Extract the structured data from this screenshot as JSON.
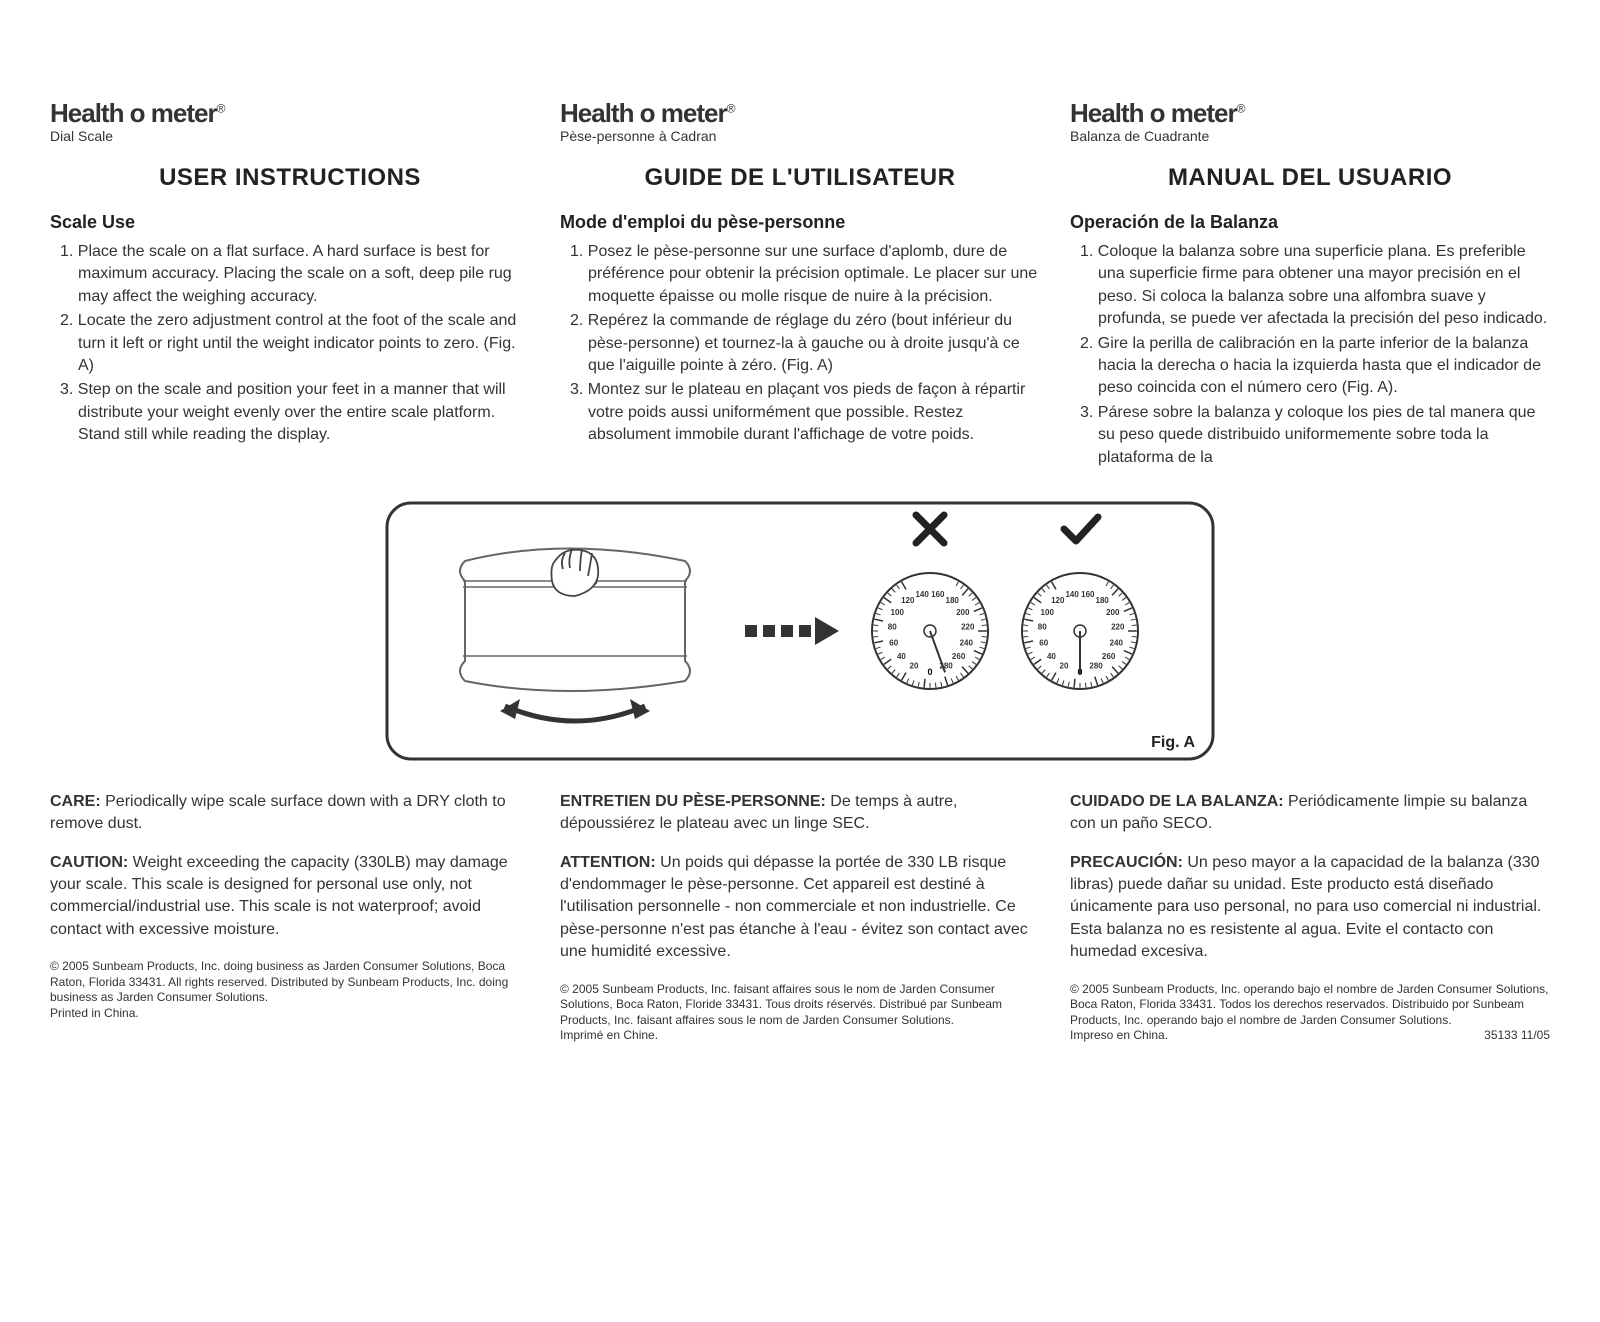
{
  "brand": "Health o meter",
  "reg": "®",
  "columns": [
    {
      "subtitle": "Dial Scale",
      "heading": "USER INSTRUCTIONS",
      "section": "Scale Use",
      "items": [
        "1. Place the scale on a flat surface.  A hard surface is best for maximum accuracy. Placing the scale on a soft, deep pile rug may affect the weighing accuracy.",
        "2. Locate the zero adjustment control at the foot of the scale and turn it left or right until the weight indicator points to zero. (Fig. A)",
        "3. Step on the scale and position your feet in a manner that will distribute your weight evenly over the entire scale platform. Stand still while reading the display."
      ]
    },
    {
      "subtitle": "Pèse-personne à Cadran",
      "heading": "GUIDE DE L'UTILISATEUR",
      "section": "Mode d'emploi du pèse-personne",
      "items": [
        "1. Posez le pèse-personne sur une surface d'aplomb, dure de préférence pour obtenir la précision optimale. Le placer sur une moquette épaisse ou molle risque de nuire à la précision.",
        "2. Repérez la commande de réglage du zéro (bout inférieur du pèse-personne) et tournez-la à gauche ou à droite jusqu'à ce que l'aiguille pointe à zéro. (Fig. A)",
        "3. Montez sur le plateau en plaçant vos pieds de façon à répartir votre poids aussi uniformément que possible. Restez absolument immobile durant l'affichage de votre poids."
      ]
    },
    {
      "subtitle": "Balanza de Cuadrante",
      "heading": "MANUAL DEL USUARIO",
      "section": "Operación de la Balanza",
      "items": [
        "1. Coloque la balanza sobre una superficie plana. Es preferible una superficie firme para obtener una mayor precisión en el peso. Si coloca la balanza sobre una alfombra suave y profunda, se puede ver afectada la precisión del peso indicado.",
        "2. Gire la perilla de calibración en la parte inferior de la balanza hacia la derecha o hacia la izquierda hasta que el indicador de peso coincida con el número cero (Fig. A).",
        "3. Párese sobre la balanza y coloque los pies de tal manera que su peso quede distribuido uniformemente sobre toda la plataforma de la"
      ]
    }
  ],
  "figure": {
    "label": "Fig. A",
    "dial_labels": [
      "20",
      "40",
      "60",
      "80",
      "100",
      "120",
      "140",
      "160",
      "180",
      "200",
      "220",
      "240",
      "260",
      "280",
      "0"
    ],
    "border_color": "#333333",
    "stroke_color": "#333333",
    "bg_color": "#ffffff"
  },
  "bottom": [
    {
      "care_label": "CARE:",
      "care_text": " Periodically wipe scale surface down with a DRY cloth to remove dust.",
      "caution_label": "CAUTION:",
      "caution_text": " Weight exceeding the capacity (330LB) may damage your scale. This scale is designed for personal use only, not commercial/industrial use. This scale is not waterproof; avoid contact with excessive moisture.",
      "copyright": "© 2005 Sunbeam Products, Inc. doing business as Jarden Consumer Solutions, Boca Raton, Florida 33431. All rights reserved. Distributed by Sunbeam Products, Inc. doing business as Jarden Consumer Solutions.",
      "printed": "Printed in China."
    },
    {
      "care_label": "ENTRETIEN DU PÈSE-PERSONNE:",
      "care_text": " De temps à autre, dépoussiérez le plateau avec un linge SEC.",
      "caution_label": "ATTENTION:",
      "caution_text": " Un poids qui dépasse la portée de 330 LB risque d'endommager le pèse-personne. Cet appareil est destiné à l'utilisation personnelle - non commerciale et non industrielle. Ce pèse-personne n'est pas étanche à l'eau - évitez son contact avec une humidité excessive.",
      "copyright": "© 2005 Sunbeam Products, Inc. faisant affaires sous le nom de Jarden Consumer Solutions, Boca Raton, Floride 33431. Tous droits réservés. Distribué par Sunbeam Products, Inc. faisant affaires sous le nom de Jarden Consumer Solutions.",
      "printed": "Imprimé en Chine."
    },
    {
      "care_label": "CUIDADO DE LA BALANZA:",
      "care_text": " Periódicamente limpie su balanza con un paño SECO.",
      "caution_label": "PRECAUCIÓN:",
      "caution_text": " Un peso mayor a la capacidad de la balanza (330 libras) puede dañar su unidad. Este producto está diseñado únicamente para uso personal, no para uso comercial ni industrial. Esta balanza no es resistente al agua. Evite el contacto con humedad excesiva.",
      "copyright": "© 2005 Sunbeam Products, Inc. operando bajo el nombre de Jarden Consumer Solutions, Boca Raton, Florida 33431. Todos los derechos reservados. Distribuido por Sunbeam Products, Inc. operando bajo el nombre de Jarden Consumer Solutions.",
      "printed": "Impreso en China."
    }
  ],
  "part_number": "35133  11/05"
}
